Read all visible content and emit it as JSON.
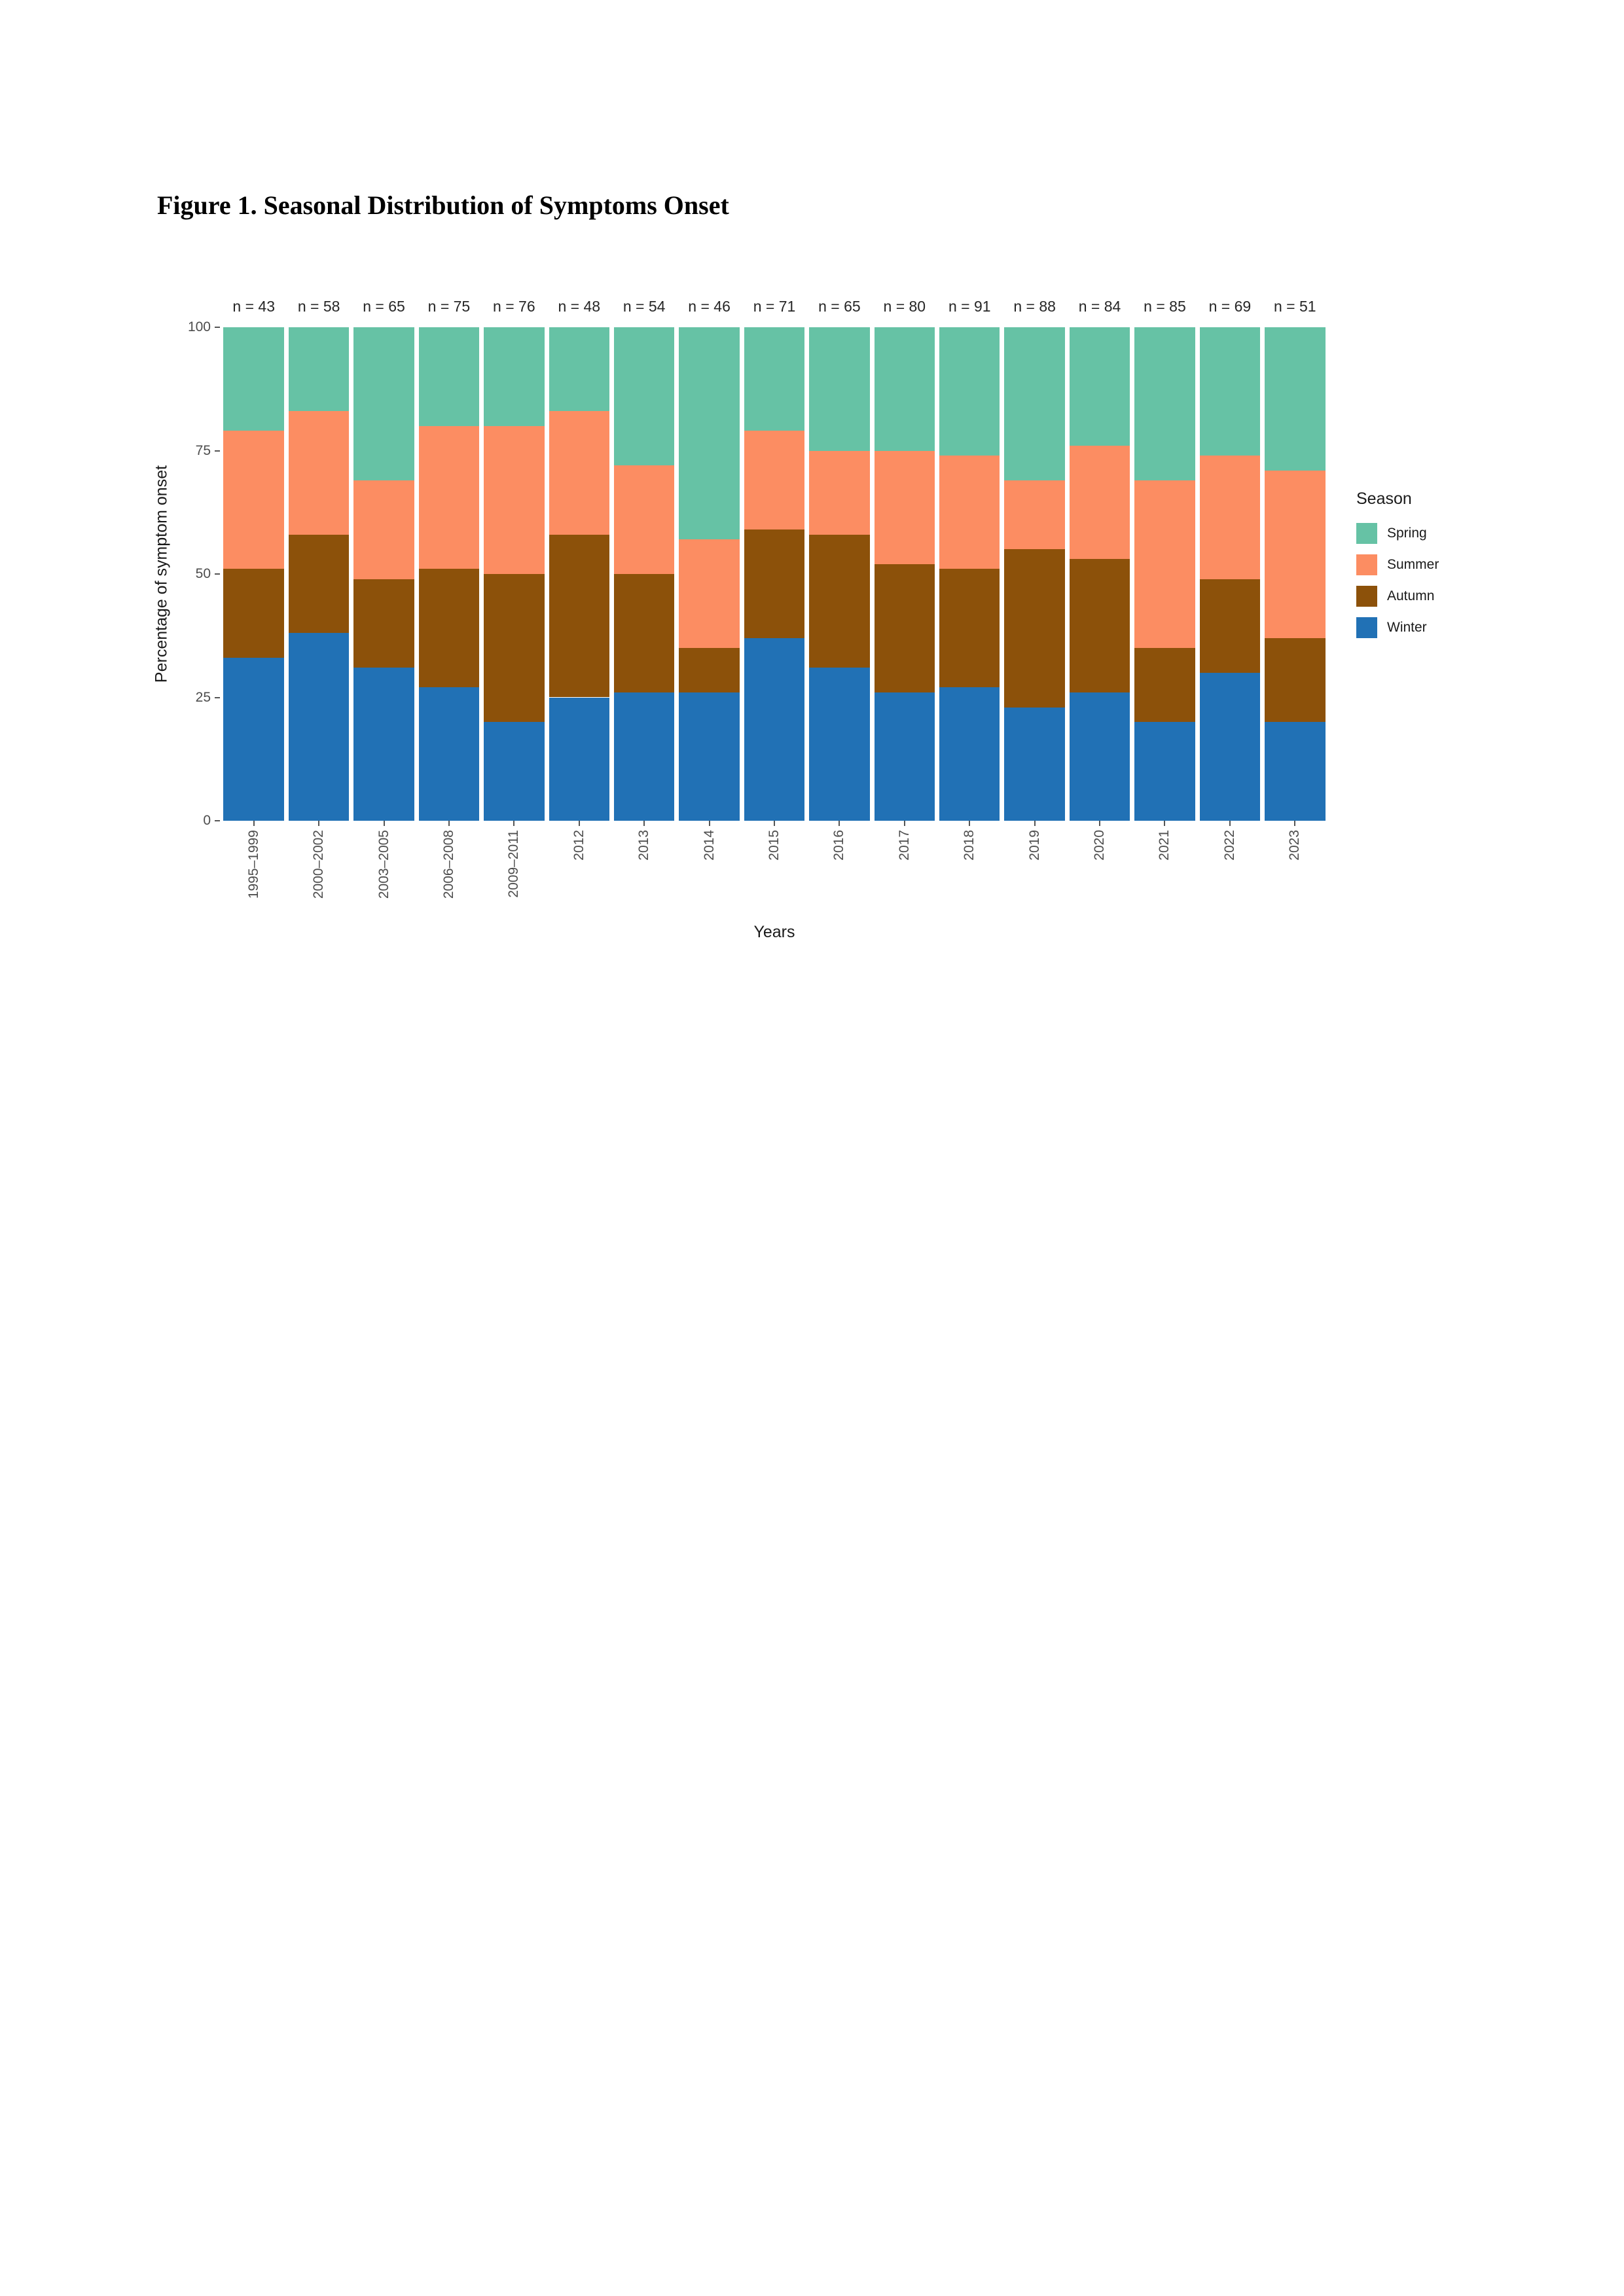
{
  "page": {
    "title": "Figure 1. Seasonal Distribution of Symptoms Onset"
  },
  "chart_data": {
    "type": "bar",
    "stacked": true,
    "percent": true,
    "xlabel": "Years",
    "ylabel": "Percentage of symptom onset",
    "ylim": [
      0,
      100
    ],
    "yticks": [
      0,
      25,
      50,
      75,
      100
    ],
    "legend_title": "Season",
    "legend_position": "right",
    "legend_order": [
      "Spring",
      "Summer",
      "Autumn",
      "Winter"
    ],
    "grid": false,
    "categories": [
      "1995–1999",
      "2000–2002",
      "2003–2005",
      "2006–2008",
      "2009–2011",
      "2012",
      "2013",
      "2014",
      "2015",
      "2016",
      "2017",
      "2018",
      "2019",
      "2020",
      "2021",
      "2022",
      "2023"
    ],
    "n_labels": [
      "n = 43",
      "n = 58",
      "n = 65",
      "n = 75",
      "n = 76",
      "n = 48",
      "n = 54",
      "n = 46",
      "n = 71",
      "n = 65",
      "n = 80",
      "n = 91",
      "n = 88",
      "n = 84",
      "n = 85",
      "n = 69",
      "n = 51"
    ],
    "series": [
      {
        "name": "Winter",
        "color": "#2171B5",
        "values": [
          33,
          38,
          31,
          27,
          20,
          25,
          26,
          26,
          37,
          31,
          26,
          27,
          23,
          26,
          20,
          30,
          20
        ]
      },
      {
        "name": "Autumn",
        "color": "#8C510A",
        "values": [
          18,
          20,
          18,
          24,
          30,
          33,
          24,
          9,
          22,
          27,
          26,
          24,
          32,
          27,
          15,
          19,
          17
        ]
      },
      {
        "name": "Summer",
        "color": "#FC8D62",
        "values": [
          28,
          25,
          20,
          29,
          30,
          25,
          22,
          22,
          20,
          17,
          23,
          23,
          14,
          23,
          34,
          25,
          34
        ]
      },
      {
        "name": "Spring",
        "color": "#66C2A5",
        "values": [
          21,
          17,
          31,
          20,
          20,
          17,
          28,
          43,
          21,
          25,
          25,
          26,
          31,
          24,
          31,
          26,
          29
        ]
      }
    ]
  }
}
